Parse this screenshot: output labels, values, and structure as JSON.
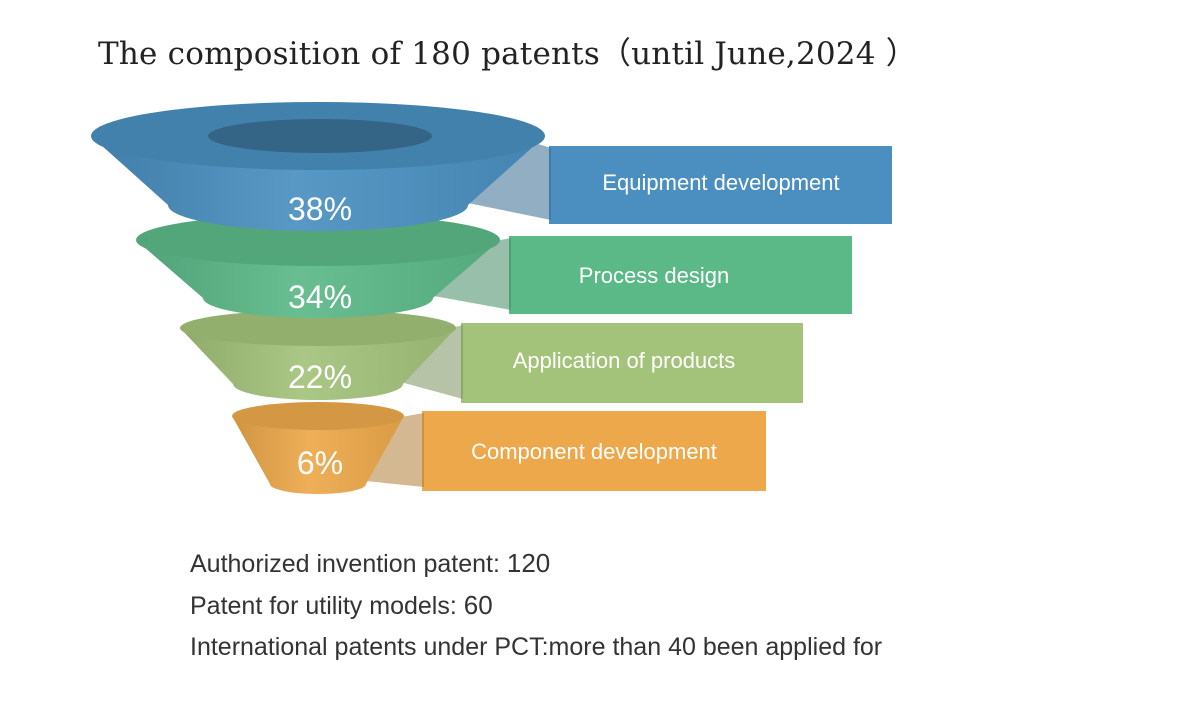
{
  "title": "The composition of 180 patents（until June,2024 ）",
  "chart_data": {
    "type": "funnel",
    "title": "The composition of 180 patents（until June,2024 ）",
    "total_patents": 180,
    "segments": [
      {
        "label": "Equipment development",
        "value": 38,
        "display": "38%",
        "color": "#4a8fc0"
      },
      {
        "label": "Process design",
        "value": 34,
        "display": "34%",
        "color": "#5bb887"
      },
      {
        "label": "Application of products",
        "value": 22,
        "display": "22%",
        "color": "#a3c27a"
      },
      {
        "label": "Component development",
        "value": 6,
        "display": "6%",
        "color": "#eca84a"
      }
    ]
  },
  "notes": [
    {
      "label": "Authorized invention patent:",
      "value": "120"
    },
    {
      "label": "Patent for utility models:",
      "value": "60"
    },
    {
      "label": "International patents under PCT:more than 40 been applied for",
      "value": ""
    }
  ]
}
